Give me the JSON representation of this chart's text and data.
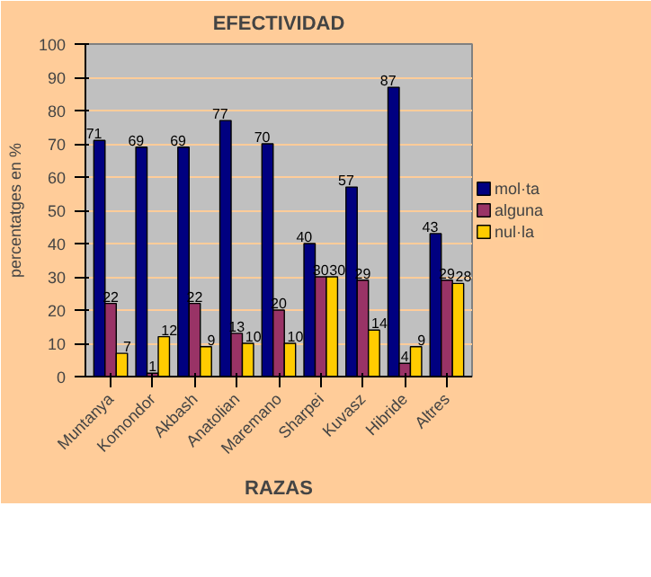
{
  "chart_data": {
    "type": "bar",
    "title": "EFECTIVIDAD",
    "xlabel": "RAZAS",
    "ylabel": "percentatges en %",
    "categories": [
      "Muntanya",
      "Komondor",
      "Akbash",
      "Anatolian",
      "Maremano",
      "Sharpei",
      "Kuvasz",
      "Hibride",
      "Altres"
    ],
    "series": [
      {
        "name": "mol·ta",
        "color": "#000080",
        "values": [
          71,
          69,
          69,
          77,
          70,
          40,
          57,
          87,
          43
        ]
      },
      {
        "name": "alguna",
        "color": "#993366",
        "values": [
          22,
          1,
          22,
          13,
          20,
          30,
          29,
          4,
          29
        ]
      },
      {
        "name": "nul·la",
        "color": "#ffcc00",
        "values": [
          7,
          12,
          9,
          10,
          10,
          30,
          14,
          9,
          28
        ]
      }
    ],
    "ylim": [
      0,
      100
    ],
    "yticks": [
      0,
      10,
      20,
      30,
      40,
      50,
      60,
      70,
      80,
      90,
      100
    ],
    "grid": "y",
    "legend": "right",
    "data_labels": true
  }
}
